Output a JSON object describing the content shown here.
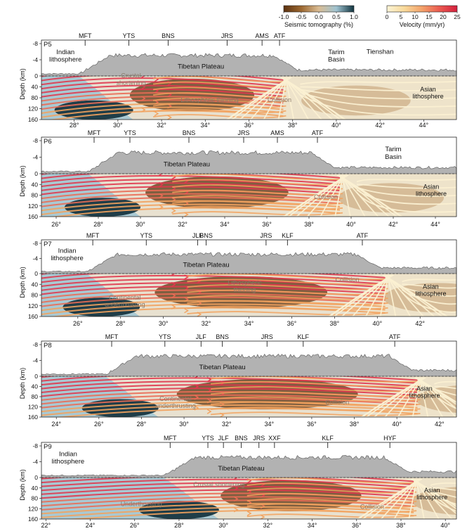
{
  "legend": {
    "tomography": {
      "label": "Seismic tomography (%)",
      "ticks": [
        "-1.0",
        "-0.5",
        "0.0",
        "0.5",
        "1.0"
      ],
      "colors": [
        "#5b3210",
        "#9c6730",
        "#d9bc94",
        "#9fc3d1",
        "#11343f"
      ]
    },
    "velocity": {
      "label": "Velocity (mm/yr)",
      "ticks": [
        "0",
        "5",
        "10",
        "15",
        "20",
        "25"
      ],
      "colors": [
        "#fbf4d6",
        "#f8d99a",
        "#f3a26a",
        "#ea5a50",
        "#d41f3e"
      ]
    }
  },
  "colors": {
    "topography": "#b2b2b2",
    "background_blue": "#9ec4d3",
    "deep_blue": "#0f2d39",
    "brown": "#5c3310",
    "light": "#e8e1d0",
    "red_stream": "#e0384e",
    "orange_stream": "#f2a25e",
    "pale_stream": "#fbf0d2"
  },
  "common": {
    "depth_label": "Depth (km)",
    "depth_ticks": [
      "-8",
      "-4",
      "0",
      "40",
      "80",
      "120",
      "160"
    ]
  },
  "panels": [
    {
      "id": "P5",
      "lon_ticks": [
        "28°",
        "30°",
        "32°",
        "34°",
        "36°",
        "38°",
        "40°",
        "42°",
        "44°"
      ],
      "lon_range": [
        26.5,
        45.5
      ],
      "faults": [
        {
          "name": "MFT",
          "lon": 28.5
        },
        {
          "name": "YTS",
          "lon": 30.5
        },
        {
          "name": "BNS",
          "lon": 32.3
        },
        {
          "name": "JRS",
          "lon": 35.0
        },
        {
          "name": "AMS",
          "lon": 36.6
        },
        {
          "name": "ATF",
          "lon": 37.4
        }
      ],
      "surface_labels": [
        {
          "text": "Indian\nlithosphere",
          "lon": 27.6,
          "depth": -4.5
        },
        {
          "text": "Tibetan Plateau",
          "lon": 33.8,
          "depth": -1.8
        },
        {
          "text": "Tarim\nBasin",
          "lon": 40.0,
          "depth": -4.5
        },
        {
          "text": "Tienshan",
          "lon": 42.0,
          "depth": -5.5
        }
      ],
      "section_labels": [
        {
          "text": "Crustal\nshortening",
          "lon": 30.6,
          "depth": 20
        },
        {
          "text": "Lithospheric thinning",
          "lon": 34.2,
          "depth": 95
        },
        {
          "text": "Collision",
          "lon": 37.4,
          "depth": 95
        },
        {
          "text": "Asian\nlithosphere",
          "lon": 44.2,
          "depth": 70
        }
      ]
    },
    {
      "id": "P6",
      "lon_ticks": [
        "26°",
        "28°",
        "30°",
        "32°",
        "34°",
        "36°",
        "38°",
        "40°",
        "42°",
        "44°"
      ],
      "lon_range": [
        25.3,
        45.0
      ],
      "faults": [
        {
          "name": "MFT",
          "lon": 27.8
        },
        {
          "name": "YTS",
          "lon": 29.5
        },
        {
          "name": "BNS",
          "lon": 32.3
        },
        {
          "name": "JRS",
          "lon": 34.9
        },
        {
          "name": "AMS",
          "lon": 36.5
        },
        {
          "name": "ATF",
          "lon": 38.4
        }
      ],
      "surface_labels": [
        {
          "text": "Tibetan Plateau",
          "lon": 32.2,
          "depth": -1.8
        },
        {
          "text": "Tarim\nBasin",
          "lon": 42.0,
          "depth": -4.5
        }
      ],
      "section_labels": [
        {
          "text": "Collision",
          "lon": 38.8,
          "depth": 95
        },
        {
          "text": "Asian\nlithosphere",
          "lon": 43.8,
          "depth": 70
        }
      ]
    },
    {
      "id": "P7",
      "lon_ticks": [
        "26°",
        "28°",
        "30°",
        "32°",
        "34°",
        "36°",
        "38°",
        "40°",
        "42°"
      ],
      "lon_range": [
        24.3,
        43.7
      ],
      "faults": [
        {
          "name": "MFT",
          "lon": 26.7
        },
        {
          "name": "YTS",
          "lon": 29.2
        },
        {
          "name": "JLF",
          "lon": 31.6
        },
        {
          "name": "BNS",
          "lon": 32.0
        },
        {
          "name": "JRS",
          "lon": 34.8
        },
        {
          "name": "KLF",
          "lon": 35.8
        },
        {
          "name": "ATF",
          "lon": 39.3
        }
      ],
      "surface_labels": [
        {
          "text": "Indian\nlithosphere",
          "lon": 25.5,
          "depth": -4.5
        },
        {
          "text": "Tibetan Plateau",
          "lon": 32.0,
          "depth": -1.8
        }
      ],
      "section_labels": [
        {
          "text": "Continental\nunderthrusting",
          "lon": 28.2,
          "depth": 110
        },
        {
          "text": "Lithospheric\nthinning",
          "lon": 33.8,
          "depth": 55
        },
        {
          "text": "Collision",
          "lon": 38.6,
          "depth": 30
        },
        {
          "text": "Asian\nlithosphere",
          "lon": 42.5,
          "depth": 70
        }
      ]
    },
    {
      "id": "P8",
      "lon_ticks": [
        "24°",
        "26°",
        "28°",
        "30°",
        "32°",
        "34°",
        "36°",
        "38°",
        "40°",
        "42°"
      ],
      "lon_range": [
        23.3,
        42.8
      ],
      "faults": [
        {
          "name": "MFT",
          "lon": 26.6
        },
        {
          "name": "YTS",
          "lon": 29.1
        },
        {
          "name": "JLF",
          "lon": 30.8
        },
        {
          "name": "BNS",
          "lon": 31.8
        },
        {
          "name": "JRS",
          "lon": 33.9
        },
        {
          "name": "KLF",
          "lon": 35.6
        },
        {
          "name": "ATF",
          "lon": 39.9
        }
      ],
      "surface_labels": [
        {
          "text": "Tibetan Plateau",
          "lon": 31.8,
          "depth": -1.8
        }
      ],
      "section_labels": [
        {
          "text": "Continental\nunderthrusting",
          "lon": 29.6,
          "depth": 110
        },
        {
          "text": "Collision",
          "lon": 37.2,
          "depth": 110
        },
        {
          "text": "Asian\nlithosphere",
          "lon": 41.3,
          "depth": 70
        }
      ]
    },
    {
      "id": "P9",
      "lon_ticks": [
        "22°",
        "24°",
        "26°",
        "28°",
        "30°",
        "32°",
        "34°",
        "36°",
        "38°",
        "40°"
      ],
      "lon_range": [
        21.8,
        40.5
      ],
      "faults": [
        {
          "name": "MFT",
          "lon": 27.6
        },
        {
          "name": "YTS",
          "lon": 29.3
        },
        {
          "name": "JLF",
          "lon": 30.0
        },
        {
          "name": "BNS",
          "lon": 30.8
        },
        {
          "name": "JRS",
          "lon": 31.6
        },
        {
          "name": "XXF",
          "lon": 32.3
        },
        {
          "name": "KLF",
          "lon": 34.7
        },
        {
          "name": "HYF",
          "lon": 37.5
        }
      ],
      "surface_labels": [
        {
          "text": "Indian\nlithosphere",
          "lon": 23.0,
          "depth": -4.5
        },
        {
          "text": "Tibetan Plateau",
          "lon": 30.8,
          "depth": -1.8
        }
      ],
      "section_labels": [
        {
          "text": "Crustal shortening",
          "lon": 29.8,
          "depth": 35
        },
        {
          "text": "Underthrusting",
          "lon": 26.3,
          "depth": 110
        },
        {
          "text": "Collision",
          "lon": 36.7,
          "depth": 120
        },
        {
          "text": "Asian\nlithosphere",
          "lon": 39.4,
          "depth": 70
        }
      ]
    }
  ]
}
